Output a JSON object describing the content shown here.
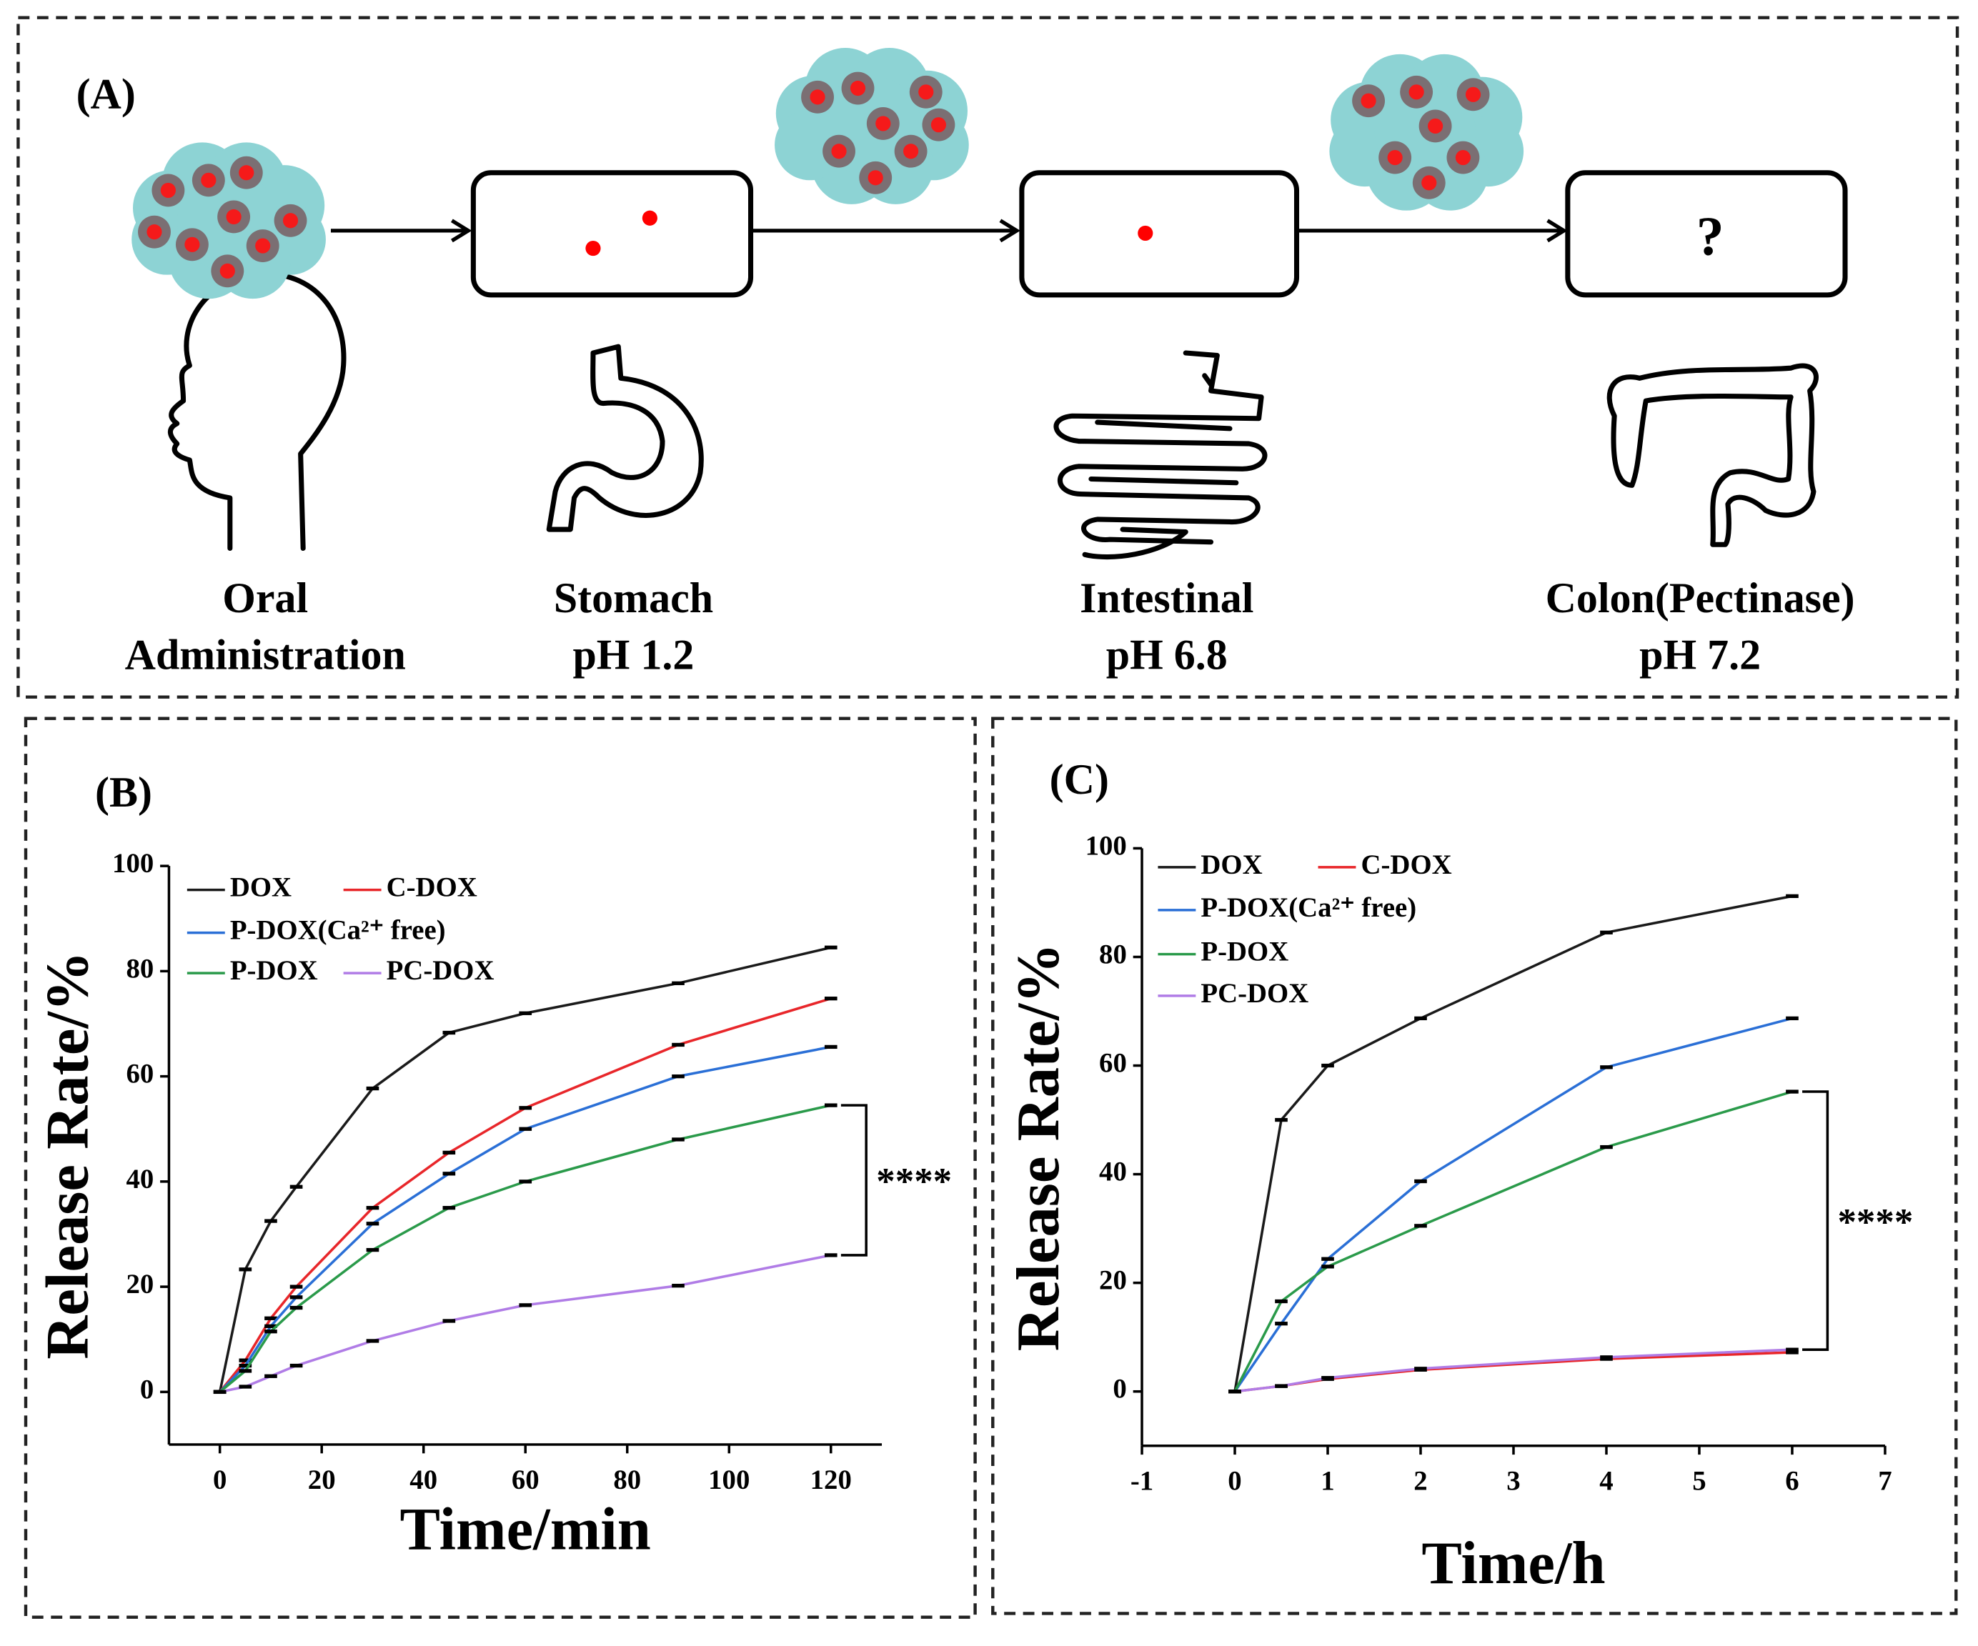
{
  "panel_a": {
    "label": "(A)",
    "question": "?",
    "stages": [
      {
        "lines": [
          "Oral",
          "Administration"
        ]
      },
      {
        "lines": [
          "Stomach",
          "pH 1.2"
        ]
      },
      {
        "lines": [
          "Intestinal",
          "pH 6.8"
        ]
      },
      {
        "lines": [
          "Colon(Pectinase)",
          "pH 7.2"
        ]
      }
    ]
  },
  "chart_data": [
    {
      "type": "line",
      "title": "(B)",
      "x_label": "Time/min",
      "y_label": "Release Rate/%",
      "annotation": "****",
      "x": [
        0,
        5,
        10,
        15,
        30,
        45,
        60,
        90,
        120
      ],
      "xlim": [
        -10,
        130
      ],
      "xticks": [
        0,
        20,
        40,
        60,
        80,
        100,
        120
      ],
      "ylim": [
        -10,
        100
      ],
      "yticks": [
        0,
        20,
        40,
        60,
        80,
        100
      ],
      "series": [
        {
          "name": "DOX",
          "color": "#1a1a1a",
          "values": [
            0,
            23.3,
            32.5,
            39,
            57.7,
            68.3,
            72,
            77.7,
            84.5
          ]
        },
        {
          "name": "C-DOX",
          "color": "#e8262a",
          "values": [
            0,
            6,
            14,
            20,
            35,
            45.5,
            54,
            66,
            74.8
          ]
        },
        {
          "name": "P-DOX(Ca²⁺ free)",
          "color": "#2a6fd6",
          "values": [
            0,
            5,
            12.5,
            18,
            32,
            41.5,
            50,
            60,
            65.6
          ]
        },
        {
          "name": "P-DOX",
          "color": "#2a9a4a",
          "values": [
            0,
            4,
            11.5,
            16,
            27,
            35,
            40,
            48,
            54.5
          ]
        },
        {
          "name": "PC-DOX",
          "color": "#b07ce6",
          "values": [
            0,
            1,
            3,
            5,
            9.7,
            13.5,
            16.5,
            20.2,
            26
          ]
        }
      ]
    },
    {
      "type": "line",
      "title": "(C)",
      "x_label": "Time/h",
      "y_label": "Release Rate/%",
      "annotation": "****",
      "x": [
        0,
        0.5,
        1,
        2,
        4,
        6
      ],
      "xlim": [
        -1,
        7
      ],
      "xticks": [
        -1,
        0,
        1,
        2,
        3,
        4,
        5,
        6,
        7
      ],
      "ylim": [
        -10,
        100
      ],
      "yticks": [
        0,
        20,
        40,
        60,
        80,
        100
      ],
      "series": [
        {
          "name": "DOX",
          "color": "#1a1a1a",
          "values": [
            0,
            50,
            60,
            68.7,
            84.5,
            91.2
          ]
        },
        {
          "name": "C-DOX",
          "color": "#e8262a",
          "values": [
            0,
            1,
            2.3,
            4,
            6,
            7.2
          ]
        },
        {
          "name": "P-DOX(Ca²⁺ free)",
          "color": "#2a6fd6",
          "values": [
            0,
            12.5,
            24.4,
            38.7,
            59.7,
            68.7
          ]
        },
        {
          "name": "P-DOX",
          "color": "#2a9a4a",
          "values": [
            0,
            16.6,
            23,
            30.5,
            45,
            55.2
          ]
        },
        {
          "name": "PC-DOX",
          "color": "#b07ce6",
          "values": [
            0,
            1,
            2.5,
            4.2,
            6.3,
            7.7
          ]
        }
      ]
    }
  ]
}
